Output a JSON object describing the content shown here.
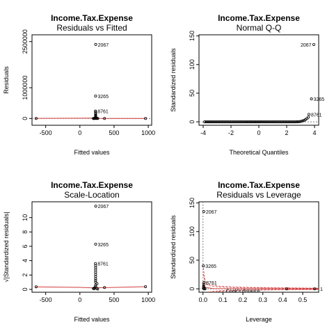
{
  "chart_data": [
    {
      "type": "scatter",
      "panel": "residuals-vs-fitted",
      "title": "Income.Tax.Expense",
      "subtitle": "Residuals vs Fitted",
      "xlabel": "Fitted values",
      "ylabel": "Residuals",
      "xlim": [
        -700,
        1050
      ],
      "ylim": [
        -220000,
        2720000
      ],
      "xticks": [
        {
          "v": -500,
          "t": "-500"
        },
        {
          "v": 0,
          "t": "0"
        },
        {
          "v": 500,
          "t": "500"
        },
        {
          "v": 1000,
          "t": "1000"
        }
      ],
      "yticks": [
        {
          "v": 0,
          "t": "0"
        },
        {
          "v": 1000000,
          "t": "1000000"
        },
        {
          "v": 2500000,
          "t": "2500000"
        }
      ],
      "ref_line": {
        "y": 0,
        "color": "#7f7f7f",
        "dash": "2,2"
      },
      "smooth_color": "#d43c3c",
      "smooth_line": [
        [
          -650,
          5000
        ],
        [
          0,
          8000
        ],
        [
          210,
          12000
        ],
        [
          230,
          3000
        ],
        [
          500,
          0
        ],
        [
          960,
          0
        ]
      ],
      "points": [
        {
          "x": -640,
          "y": 0
        },
        {
          "x": 960,
          "y": 0
        },
        {
          "x": 360,
          "y": 0
        },
        {
          "x": 232,
          "y": 2405000,
          "label": "2067"
        },
        {
          "x": 230,
          "y": 730000,
          "label": "3265"
        },
        {
          "x": 228,
          "y": 240000,
          "label": "8761"
        },
        {
          "x": 230,
          "y": 200000
        },
        {
          "x": 230,
          "y": 165000
        },
        {
          "x": 230,
          "y": 130000
        },
        {
          "x": 230,
          "y": 100000
        },
        {
          "x": 230,
          "y": 75000
        },
        {
          "x": 230,
          "y": 50000
        },
        {
          "x": 230,
          "y": 30000
        },
        {
          "x": 220,
          "y": 10000
        },
        {
          "x": 215,
          "y": 0
        },
        {
          "x": 205,
          "y": 0
        },
        {
          "x": 240,
          "y": 0
        },
        {
          "x": 250,
          "y": 5000
        },
        {
          "x": 198,
          "y": 0
        },
        {
          "x": 260,
          "y": 0
        }
      ]
    },
    {
      "type": "scatter",
      "panel": "normal-qq",
      "title": "Income.Tax.Expense",
      "subtitle": "Normal Q-Q",
      "xlabel": "Theoretical Quantiles",
      "ylabel": "Standardized residuals",
      "xlim": [
        -4.3,
        4.3
      ],
      "ylim": [
        -6,
        152
      ],
      "xticks": [
        {
          "v": -4,
          "t": "-4"
        },
        {
          "v": -2,
          "t": "-2"
        },
        {
          "v": 0,
          "t": "0"
        },
        {
          "v": 2,
          "t": "2"
        },
        {
          "v": 4,
          "t": "4"
        }
      ],
      "yticks": [
        {
          "v": 0,
          "t": "0"
        },
        {
          "v": 50,
          "t": "50"
        },
        {
          "v": 100,
          "t": "100"
        },
        {
          "v": 150,
          "t": "150"
        }
      ],
      "ref_line_color": "#7f7f7f",
      "ref_line": [
        [
          -4.3,
          0
        ],
        [
          4.3,
          0
        ]
      ],
      "points": [
        {
          "x": 3.95,
          "y": 135,
          "label": "2067"
        },
        {
          "x": 3.78,
          "y": 40,
          "label": "3265"
        },
        {
          "x": 3.6,
          "y": 13,
          "label": "8761"
        }
      ],
      "qq_curve": {
        "from": -3.9,
        "to": 3.55,
        "n": 75
      }
    },
    {
      "type": "scatter",
      "panel": "scale-location",
      "title": "Income.Tax.Expense",
      "subtitle": "Scale-Location",
      "xlabel": "Fitted values",
      "ylabel": "√|Standardized residuals|",
      "xlim": [
        -700,
        1050
      ],
      "ylim": [
        -0.4,
        12.2
      ],
      "xticks": [
        {
          "v": -500,
          "t": "-500"
        },
        {
          "v": 0,
          "t": "0"
        },
        {
          "v": 500,
          "t": "500"
        },
        {
          "v": 1000,
          "t": "1000"
        }
      ],
      "yticks": [
        {
          "v": 0,
          "t": "0"
        },
        {
          "v": 2,
          "t": "2"
        },
        {
          "v": 4,
          "t": "4"
        },
        {
          "v": 6,
          "t": "6"
        },
        {
          "v": 8,
          "t": "8"
        },
        {
          "v": 10,
          "t": "10"
        }
      ],
      "smooth_color": "#d43c3c",
      "smooth_line": [
        [
          -650,
          0.35
        ],
        [
          0,
          0.28
        ],
        [
          210,
          0.2
        ],
        [
          230,
          0.22
        ],
        [
          360,
          0.24
        ],
        [
          960,
          0.38
        ]
      ],
      "points": [
        {
          "x": -640,
          "y": 0.35
        },
        {
          "x": 960,
          "y": 0.38
        },
        {
          "x": 360,
          "y": 0.25
        },
        {
          "x": 232,
          "y": 11.6,
          "label": "2067"
        },
        {
          "x": 230,
          "y": 6.3,
          "label": "3265"
        },
        {
          "x": 228,
          "y": 3.6,
          "label": "8761"
        },
        {
          "x": 230,
          "y": 3.3
        },
        {
          "x": 230,
          "y": 3.0
        },
        {
          "x": 230,
          "y": 2.7
        },
        {
          "x": 230,
          "y": 2.4
        },
        {
          "x": 230,
          "y": 2.1
        },
        {
          "x": 230,
          "y": 1.8
        },
        {
          "x": 230,
          "y": 1.5
        },
        {
          "x": 230,
          "y": 1.25
        },
        {
          "x": 230,
          "y": 1.0
        },
        {
          "x": 250,
          "y": 0.8
        },
        {
          "x": 230,
          "y": 0.6
        },
        {
          "x": 230,
          "y": 0.4
        },
        {
          "x": 215,
          "y": 0.2
        },
        {
          "x": 205,
          "y": 0.1
        },
        {
          "x": 245,
          "y": 0.15
        },
        {
          "x": 260,
          "y": 0.05
        },
        {
          "x": 198,
          "y": 0.12
        }
      ]
    },
    {
      "type": "scatter",
      "panel": "residuals-vs-leverage",
      "title": "Income.Tax.Expense",
      "subtitle": "Residuals vs Leverage",
      "xlabel": "Leverage",
      "ylabel": "Standardized residuals",
      "xlim": [
        -0.02,
        0.58
      ],
      "ylim": [
        -6,
        152
      ],
      "xticks": [
        {
          "v": 0,
          "t": "0.0"
        },
        {
          "v": 0.1,
          "t": "0.1"
        },
        {
          "v": 0.2,
          "t": "0.2"
        },
        {
          "v": 0.3,
          "t": "0.3"
        },
        {
          "v": 0.4,
          "t": "0.4"
        },
        {
          "v": 0.5,
          "t": "0.5"
        }
      ],
      "yticks": [
        {
          "v": 0,
          "t": "0"
        },
        {
          "v": 50,
          "t": "50"
        },
        {
          "v": 100,
          "t": "100"
        },
        {
          "v": 150,
          "t": "150"
        }
      ],
      "cooks_text": "Cook's distance",
      "cooks_edge_label": "1",
      "cooks_color": "#d43c3c",
      "ref_line_color": "#7f7f7f",
      "smooth_line": [
        [
          0,
          12
        ],
        [
          0.005,
          3
        ],
        [
          0.05,
          0.5
        ],
        [
          0.58,
          0
        ]
      ],
      "points": [
        {
          "x": 0.004,
          "y": 135,
          "label": "2067"
        },
        {
          "x": 0.002,
          "y": 40,
          "label": "3265"
        },
        {
          "x": 0.005,
          "y": 11,
          "label": "8761"
        },
        {
          "x": 0.004,
          "y": 8
        },
        {
          "x": 0.003,
          "y": 5
        },
        {
          "x": 0.004,
          "y": 3
        },
        {
          "x": 0.002,
          "y": 1
        },
        {
          "x": 0.006,
          "y": 0
        },
        {
          "x": 0.01,
          "y": 0
        },
        {
          "x": 0.42,
          "y": 0
        },
        {
          "x": 0.56,
          "y": 0
        }
      ]
    }
  ]
}
